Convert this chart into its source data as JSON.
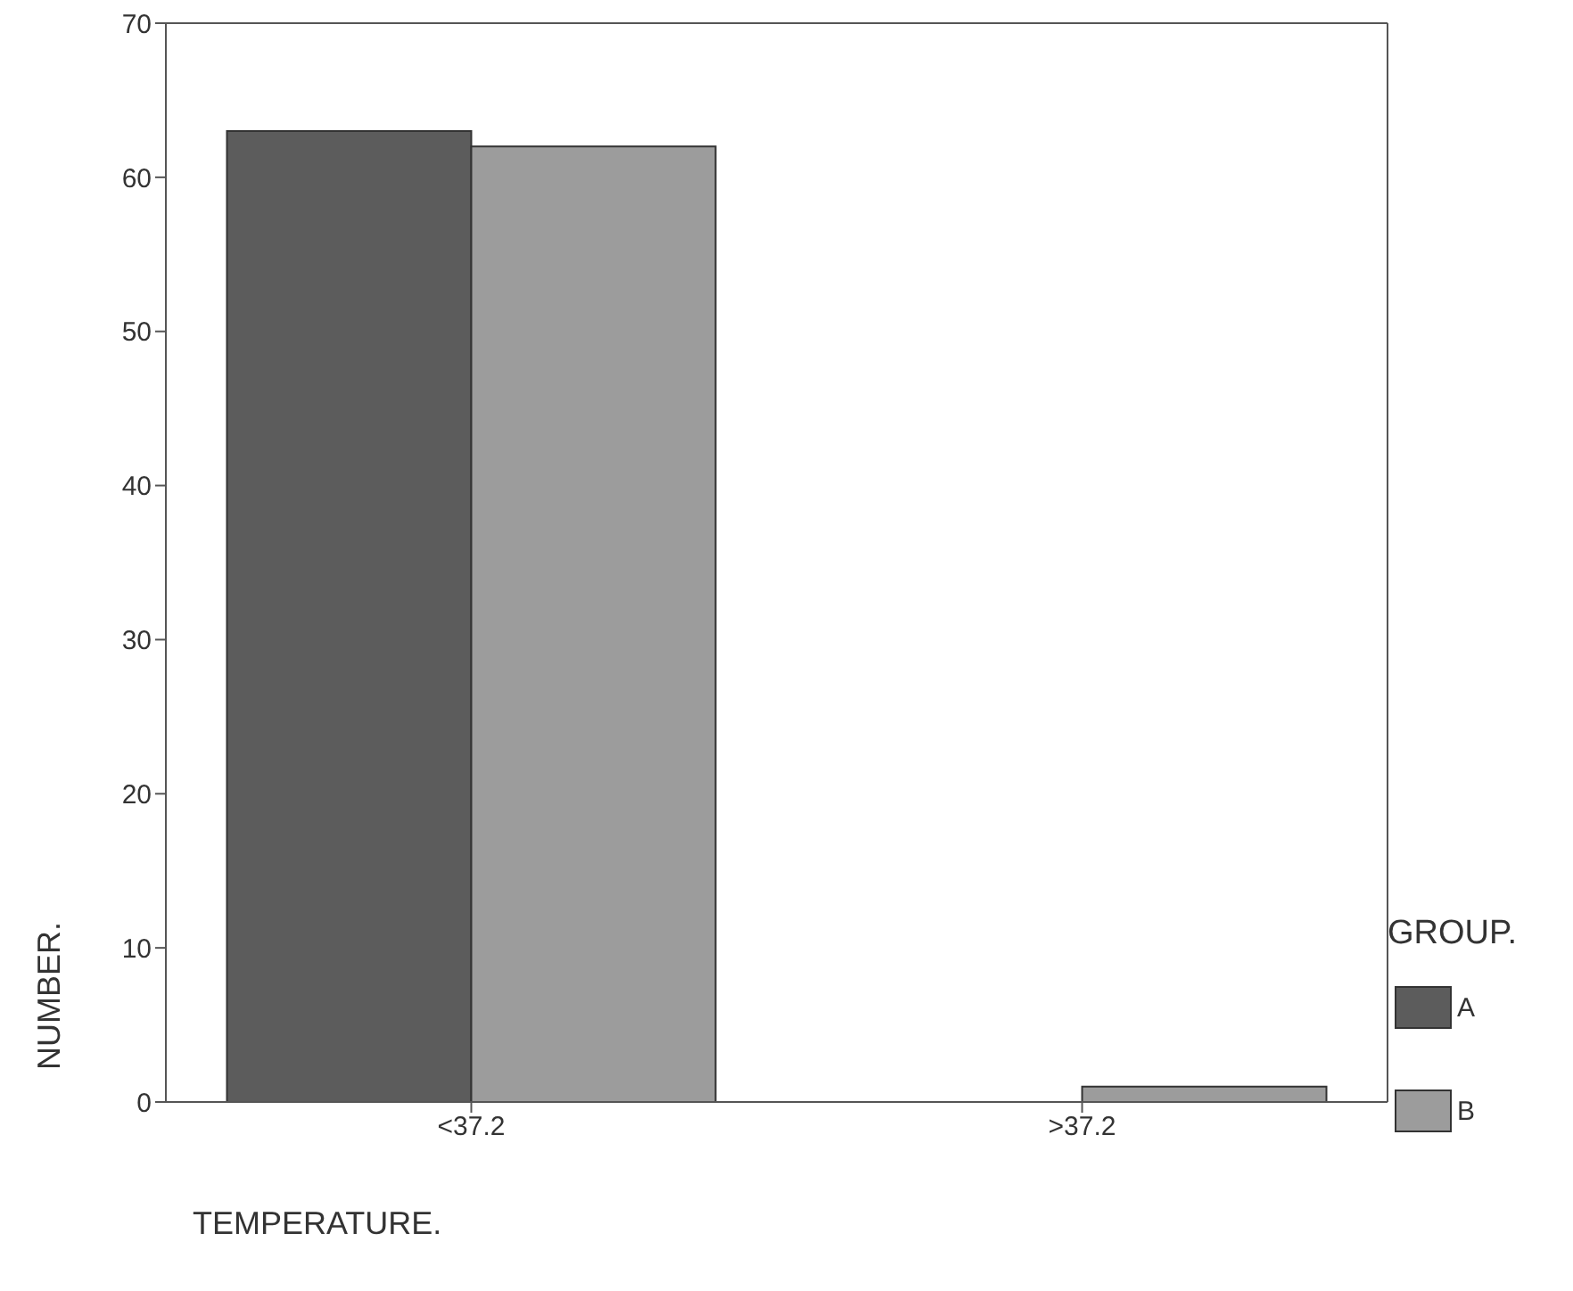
{
  "chart_data": {
    "type": "bar",
    "xlabel": "TEMPERATURE.",
    "ylabel": "NUMBER.",
    "legend_title": "GROUP.",
    "categories": [
      "<37.2",
      ">37.2"
    ],
    "series": [
      {
        "name": "A",
        "color": "#5c5c5c",
        "values": [
          63,
          0
        ]
      },
      {
        "name": "B",
        "color": "#9c9c9c",
        "values": [
          62,
          1
        ]
      }
    ],
    "ylim": [
      0,
      70
    ],
    "yticks": [
      0,
      10,
      20,
      30,
      40,
      50,
      60,
      70
    ],
    "legend": "bottom right"
  }
}
